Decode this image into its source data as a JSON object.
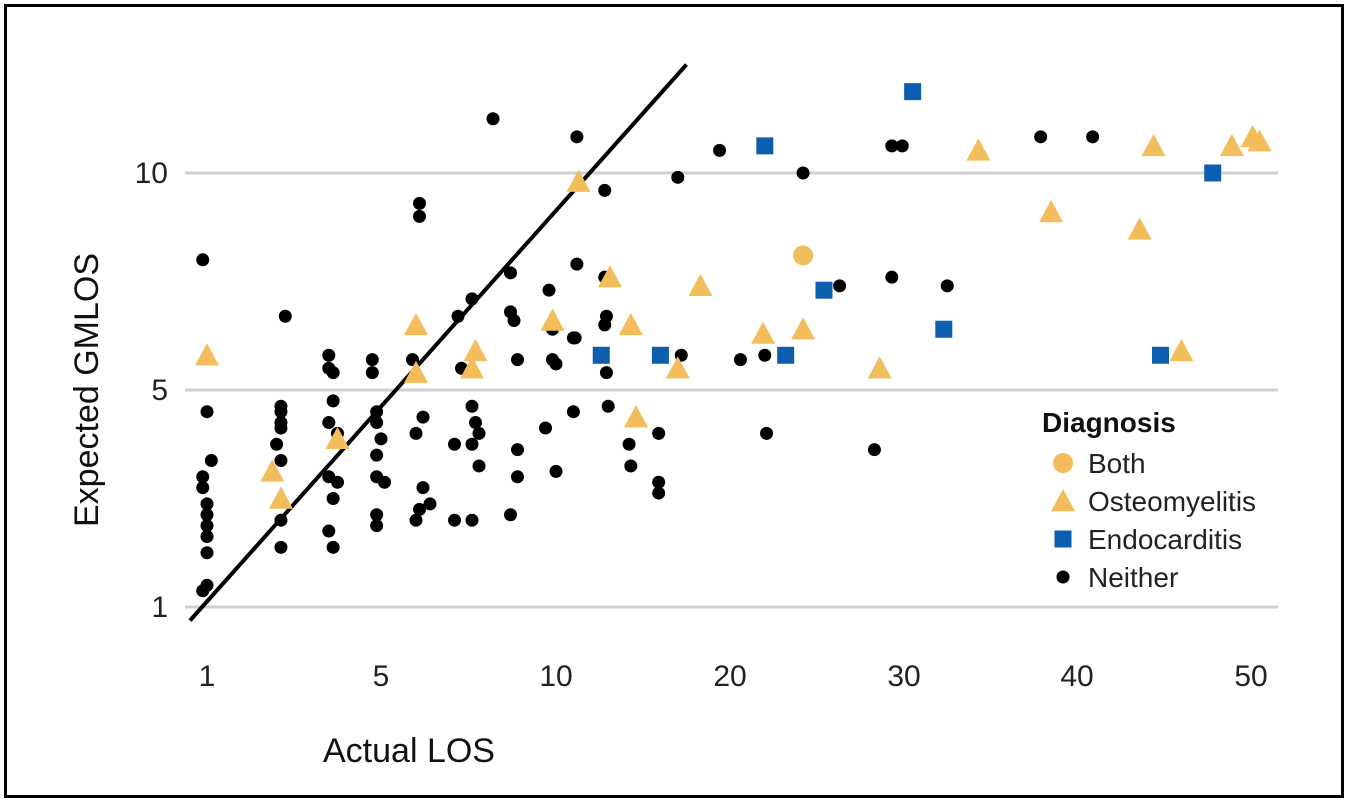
{
  "chart_data": {
    "type": "scatter",
    "title": "",
    "xlabel": "Actual LOS",
    "ylabel": "Expected GMLOS",
    "x_scale": "piecewise-linear",
    "y_scale": "piecewise-linear",
    "x_ticks": [
      1,
      5,
      10,
      20,
      30,
      40,
      50
    ],
    "y_ticks": [
      1,
      5,
      10
    ],
    "xlim": [
      0.6,
      51
    ],
    "ylim": [
      0.6,
      12.5
    ],
    "grid": "horizontal",
    "reference_line": {
      "from": [
        0.6,
        0.7
      ],
      "to": [
        17.5,
        12.4
      ],
      "color": "#000000"
    },
    "legend": {
      "title": "Diagnosis",
      "position": "right-middle",
      "entries": [
        {
          "label": "Both",
          "marker": "circle",
          "color": "#F2BD5A"
        },
        {
          "label": "Osteomyelitis",
          "marker": "triangle",
          "color": "#F2BD5A"
        },
        {
          "label": "Endocarditis",
          "marker": "square",
          "color": "#0B5FAE"
        },
        {
          "label": "Neither",
          "marker": "dot",
          "color": "#000000"
        }
      ]
    },
    "series": [
      {
        "name": "Both",
        "points": [
          [
            24.2,
            8.1
          ]
        ]
      },
      {
        "name": "Osteomyelitis",
        "points": [
          [
            1.0,
            5.8
          ],
          [
            2.5,
            3.5
          ],
          [
            2.7,
            3.0
          ],
          [
            4.0,
            4.1
          ],
          [
            6.0,
            6.5
          ],
          [
            6.0,
            5.4
          ],
          [
            7.7,
            5.9
          ],
          [
            7.6,
            5.5
          ],
          [
            9.9,
            6.6
          ],
          [
            11.3,
            9.8
          ],
          [
            13.1,
            7.6
          ],
          [
            14.3,
            6.5
          ],
          [
            14.6,
            4.5
          ],
          [
            17.0,
            5.5
          ],
          [
            18.3,
            7.4
          ],
          [
            21.9,
            6.3
          ],
          [
            24.2,
            6.4
          ],
          [
            28.6,
            5.5
          ],
          [
            34.3,
            10.5
          ],
          [
            38.5,
            9.1
          ],
          [
            43.6,
            8.7
          ],
          [
            44.4,
            10.6
          ],
          [
            46.0,
            5.9
          ],
          [
            48.9,
            10.6
          ],
          [
            50.1,
            10.8
          ],
          [
            50.5,
            10.7
          ]
        ]
      },
      {
        "name": "Endocarditis",
        "points": [
          [
            12.6,
            5.8
          ],
          [
            16.0,
            5.8
          ],
          [
            22.0,
            10.6
          ],
          [
            23.2,
            5.8
          ],
          [
            25.4,
            7.3
          ],
          [
            30.5,
            11.8
          ],
          [
            32.3,
            6.4
          ],
          [
            44.8,
            5.8
          ],
          [
            47.8,
            10.0
          ]
        ]
      },
      {
        "name": "Neither",
        "points": [
          [
            0.9,
            8.0
          ],
          [
            1.0,
            4.6
          ],
          [
            1.1,
            3.7
          ],
          [
            0.9,
            3.4
          ],
          [
            0.9,
            3.2
          ],
          [
            1.0,
            2.9
          ],
          [
            1.0,
            2.7
          ],
          [
            1.0,
            2.5
          ],
          [
            1.0,
            2.3
          ],
          [
            1.0,
            2.0
          ],
          [
            1.0,
            1.4
          ],
          [
            0.9,
            1.3
          ],
          [
            2.8,
            6.7
          ],
          [
            2.7,
            4.7
          ],
          [
            2.7,
            4.6
          ],
          [
            2.7,
            4.4
          ],
          [
            2.7,
            4.3
          ],
          [
            2.6,
            4.0
          ],
          [
            2.7,
            3.7
          ],
          [
            2.7,
            2.6
          ],
          [
            2.7,
            2.1
          ],
          [
            3.8,
            5.8
          ],
          [
            3.9,
            5.4
          ],
          [
            3.8,
            5.5
          ],
          [
            3.9,
            4.8
          ],
          [
            3.8,
            4.4
          ],
          [
            4.0,
            4.2
          ],
          [
            3.8,
            3.4
          ],
          [
            4.0,
            3.3
          ],
          [
            3.9,
            3.0
          ],
          [
            3.8,
            2.4
          ],
          [
            3.9,
            2.1
          ],
          [
            4.8,
            5.7
          ],
          [
            4.8,
            5.4
          ],
          [
            4.9,
            4.6
          ],
          [
            4.9,
            4.4
          ],
          [
            5.0,
            4.1
          ],
          [
            4.9,
            3.8
          ],
          [
            4.9,
            3.4
          ],
          [
            5.1,
            3.3
          ],
          [
            4.9,
            2.7
          ],
          [
            4.9,
            2.5
          ],
          [
            6.1,
            9.3
          ],
          [
            6.1,
            9.0
          ],
          [
            5.9,
            5.7
          ],
          [
            6.0,
            4.2
          ],
          [
            6.2,
            4.5
          ],
          [
            6.2,
            3.2
          ],
          [
            6.1,
            2.8
          ],
          [
            6.0,
            2.6
          ],
          [
            6.4,
            2.9
          ],
          [
            7.2,
            6.7
          ],
          [
            7.3,
            5.5
          ],
          [
            7.1,
            4.0
          ],
          [
            7.1,
            2.6
          ],
          [
            8.2,
            11.2
          ],
          [
            7.6,
            7.1
          ],
          [
            7.6,
            4.7
          ],
          [
            7.7,
            4.4
          ],
          [
            7.8,
            4.2
          ],
          [
            7.6,
            4.0
          ],
          [
            7.8,
            3.6
          ],
          [
            7.6,
            2.6
          ],
          [
            8.7,
            7.7
          ],
          [
            8.7,
            6.8
          ],
          [
            8.8,
            6.6
          ],
          [
            8.9,
            5.7
          ],
          [
            8.9,
            3.9
          ],
          [
            8.9,
            3.4
          ],
          [
            8.7,
            2.7
          ],
          [
            9.8,
            7.3
          ],
          [
            9.9,
            6.4
          ],
          [
            9.9,
            5.7
          ],
          [
            10.0,
            5.6
          ],
          [
            9.7,
            4.3
          ],
          [
            10.0,
            3.5
          ],
          [
            11.2,
            10.8
          ],
          [
            11.2,
            7.9
          ],
          [
            11.1,
            6.2
          ],
          [
            11.0,
            6.2
          ],
          [
            11.0,
            4.6
          ],
          [
            12.8,
            9.6
          ],
          [
            12.8,
            7.6
          ],
          [
            12.8,
            6.5
          ],
          [
            12.9,
            6.7
          ],
          [
            12.9,
            5.4
          ],
          [
            13.0,
            4.7
          ],
          [
            14.2,
            4.0
          ],
          [
            14.3,
            3.6
          ],
          [
            15.9,
            4.2
          ],
          [
            15.9,
            3.3
          ],
          [
            15.9,
            3.1
          ],
          [
            17.0,
            9.9
          ],
          [
            17.2,
            5.8
          ],
          [
            19.4,
            10.5
          ],
          [
            20.6,
            5.7
          ],
          [
            22.0,
            5.8
          ],
          [
            22.1,
            4.2
          ],
          [
            24.2,
            10.0
          ],
          [
            26.3,
            7.4
          ],
          [
            28.3,
            3.9
          ],
          [
            29.3,
            10.6
          ],
          [
            29.9,
            10.6
          ],
          [
            29.3,
            7.6
          ],
          [
            32.5,
            7.4
          ],
          [
            37.9,
            10.8
          ],
          [
            40.9,
            10.8
          ]
        ]
      }
    ]
  }
}
